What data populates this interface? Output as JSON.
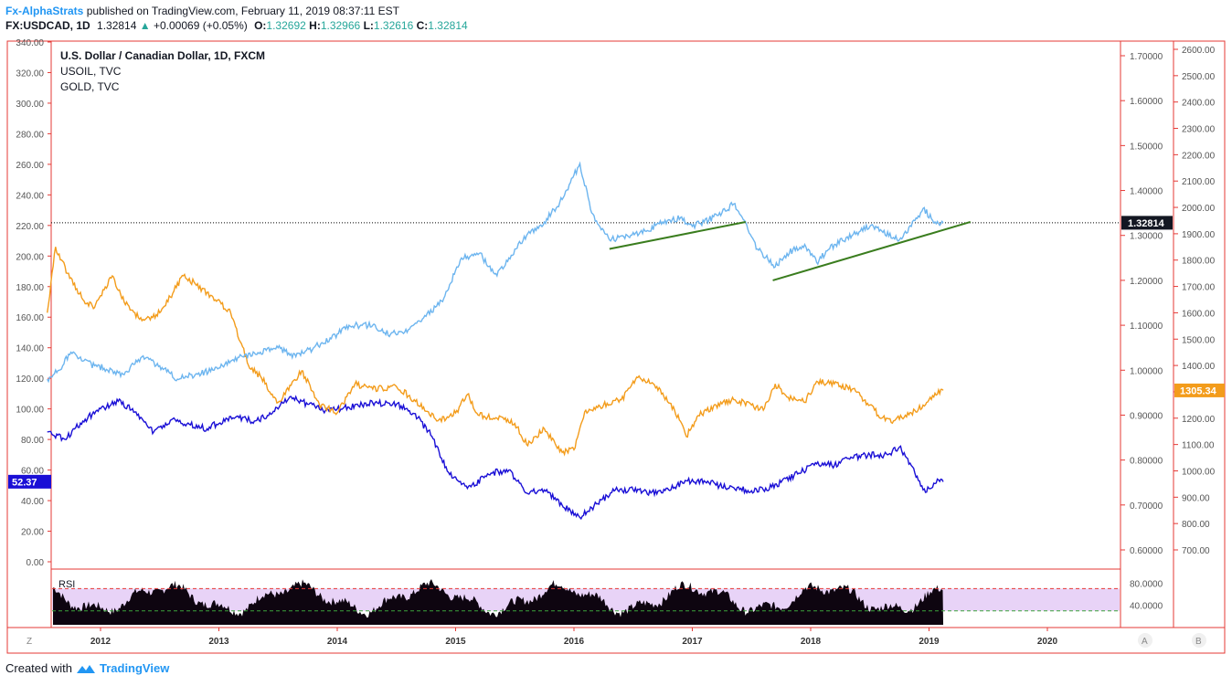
{
  "header": {
    "author": "Fx-AlphaStrats",
    "published": " published on TradingView.com, February 11, 2019 08:37:11 EST",
    "symbol": "FX:USDCAD, 1D",
    "last": "1.32814",
    "change_arrow": "▲",
    "change": "+0.00069 (+0.05%)",
    "open_label": "O:",
    "open": "1.32692",
    "high_label": "H:",
    "high": "1.32966",
    "low_label": "L:",
    "low": "1.32616",
    "close_label": "C:",
    "close": "1.32814"
  },
  "legend": {
    "line1": "U.S. Dollar / Canadian Dollar, 1D, FXCM",
    "line2": "USOIL, TVC",
    "line3": "GOLD, TVC"
  },
  "badges": {
    "usdcad": "1.32814",
    "gold": "1305.34",
    "oil": "52.37"
  },
  "indicator": {
    "label": "RSI"
  },
  "scale_buttons": {
    "left": "Z",
    "auto": "A",
    "right": "B"
  },
  "footer": {
    "created": "Created with",
    "brand": "TradingView"
  },
  "colors": {
    "usdcad": "#6db5ef",
    "usoil": "#1a0fd6",
    "gold": "#f39c1b",
    "trendline": "#3a7d1e",
    "axis_red": "#e53935",
    "rsi_fill": "#e8d3f7"
  },
  "chart_data": {
    "type": "line",
    "x_ticks": [
      "2012",
      "2013",
      "2014",
      "2015",
      "2016",
      "2017",
      "2018",
      "2019",
      "2020"
    ],
    "left_axis_ticks": [
      "0.00",
      "20.00",
      "40.00",
      "60.00",
      "80.00",
      "100.00",
      "120.00",
      "140.00",
      "160.00",
      "180.00",
      "200.00",
      "220.00",
      "240.00",
      "260.00",
      "280.00",
      "300.00",
      "320.00",
      "340.00"
    ],
    "mid_axis_ticks": [
      "0.60000",
      "0.70000",
      "0.80000",
      "0.90000",
      "1.00000",
      "1.10000",
      "1.20000",
      "1.30000",
      "1.40000",
      "1.50000",
      "1.60000",
      "1.70000"
    ],
    "right_axis_ticks": [
      "700.00",
      "800.00",
      "900.00",
      "1000.00",
      "1100.00",
      "1200.00",
      "1300.00",
      "1400.00",
      "1500.00",
      "1600.00",
      "1700.00",
      "1800.00",
      "1900.00",
      "2000.00",
      "2100.00",
      "2200.00",
      "2300.00",
      "2400.00",
      "2500.00",
      "2600.00"
    ],
    "rsi_ticks": [
      "40.0000",
      "80.0000"
    ],
    "left_ylim": [
      0,
      340
    ],
    "mid_ylim": [
      0.575,
      1.725
    ],
    "right_ylim": [
      620,
      2620
    ],
    "last_usdcad": 1.32814,
    "series": [
      {
        "name": "USOIL, TVC",
        "axis": "left",
        "points": [
          [
            2011.55,
            85
          ],
          [
            2011.7,
            80
          ],
          [
            2011.85,
            92
          ],
          [
            2012.0,
            100
          ],
          [
            2012.15,
            105
          ],
          [
            2012.3,
            98
          ],
          [
            2012.45,
            85
          ],
          [
            2012.6,
            93
          ],
          [
            2012.75,
            90
          ],
          [
            2012.9,
            87
          ],
          [
            2013.1,
            95
          ],
          [
            2013.3,
            92
          ],
          [
            2013.45,
            97
          ],
          [
            2013.6,
            108
          ],
          [
            2013.75,
            103
          ],
          [
            2013.9,
            99
          ],
          [
            2014.1,
            101
          ],
          [
            2014.3,
            104
          ],
          [
            2014.5,
            103
          ],
          [
            2014.65,
            97
          ],
          [
            2014.8,
            82
          ],
          [
            2014.95,
            57
          ],
          [
            2015.1,
            48
          ],
          [
            2015.3,
            58
          ],
          [
            2015.45,
            60
          ],
          [
            2015.6,
            45
          ],
          [
            2015.75,
            47
          ],
          [
            2015.9,
            37
          ],
          [
            2016.05,
            29
          ],
          [
            2016.2,
            38
          ],
          [
            2016.35,
            47
          ],
          [
            2016.5,
            47
          ],
          [
            2016.65,
            45
          ],
          [
            2016.8,
            47
          ],
          [
            2016.95,
            53
          ],
          [
            2017.1,
            53
          ],
          [
            2017.3,
            48
          ],
          [
            2017.45,
            47
          ],
          [
            2017.6,
            47
          ],
          [
            2017.75,
            52
          ],
          [
            2017.9,
            58
          ],
          [
            2018.05,
            64
          ],
          [
            2018.2,
            63
          ],
          [
            2018.35,
            68
          ],
          [
            2018.5,
            70
          ],
          [
            2018.65,
            70
          ],
          [
            2018.75,
            75
          ],
          [
            2018.85,
            63
          ],
          [
            2018.95,
            47
          ],
          [
            2019.0,
            48
          ],
          [
            2019.1,
            54
          ],
          [
            2019.12,
            52.37
          ]
        ]
      },
      {
        "name": "GOLD, TVC",
        "axis": "right",
        "points": [
          [
            2011.55,
            1600
          ],
          [
            2011.62,
            1850
          ],
          [
            2011.72,
            1750
          ],
          [
            2011.85,
            1650
          ],
          [
            2011.95,
            1620
          ],
          [
            2012.1,
            1740
          ],
          [
            2012.2,
            1640
          ],
          [
            2012.35,
            1570
          ],
          [
            2012.5,
            1600
          ],
          [
            2012.7,
            1740
          ],
          [
            2012.8,
            1710
          ],
          [
            2012.95,
            1660
          ],
          [
            2013.1,
            1600
          ],
          [
            2013.25,
            1400
          ],
          [
            2013.35,
            1360
          ],
          [
            2013.5,
            1260
          ],
          [
            2013.7,
            1380
          ],
          [
            2013.85,
            1250
          ],
          [
            2014.0,
            1220
          ],
          [
            2014.15,
            1330
          ],
          [
            2014.3,
            1310
          ],
          [
            2014.5,
            1320
          ],
          [
            2014.65,
            1270
          ],
          [
            2014.85,
            1190
          ],
          [
            2015.0,
            1220
          ],
          [
            2015.1,
            1290
          ],
          [
            2015.2,
            1210
          ],
          [
            2015.35,
            1200
          ],
          [
            2015.5,
            1180
          ],
          [
            2015.6,
            1100
          ],
          [
            2015.75,
            1160
          ],
          [
            2015.9,
            1070
          ],
          [
            2016.0,
            1080
          ],
          [
            2016.1,
            1230
          ],
          [
            2016.25,
            1250
          ],
          [
            2016.4,
            1270
          ],
          [
            2016.55,
            1360
          ],
          [
            2016.7,
            1320
          ],
          [
            2016.85,
            1230
          ],
          [
            2016.95,
            1130
          ],
          [
            2017.05,
            1210
          ],
          [
            2017.2,
            1250
          ],
          [
            2017.35,
            1270
          ],
          [
            2017.5,
            1250
          ],
          [
            2017.6,
            1230
          ],
          [
            2017.7,
            1330
          ],
          [
            2017.8,
            1280
          ],
          [
            2017.95,
            1260
          ],
          [
            2018.05,
            1340
          ],
          [
            2018.2,
            1330
          ],
          [
            2018.35,
            1310
          ],
          [
            2018.5,
            1250
          ],
          [
            2018.6,
            1200
          ],
          [
            2018.7,
            1190
          ],
          [
            2018.85,
            1220
          ],
          [
            2018.95,
            1250
          ],
          [
            2019.05,
            1295
          ],
          [
            2019.12,
            1305.34
          ]
        ]
      },
      {
        "name": "U.S. Dollar / Canadian Dollar, 1D, FXCM",
        "axis": "mid",
        "points": [
          [
            2011.55,
            0.98
          ],
          [
            2011.65,
            1.0
          ],
          [
            2011.75,
            1.04
          ],
          [
            2011.85,
            1.02
          ],
          [
            2011.95,
            1.01
          ],
          [
            2012.1,
            1.0
          ],
          [
            2012.2,
            0.99
          ],
          [
            2012.35,
            1.03
          ],
          [
            2012.5,
            1.01
          ],
          [
            2012.65,
            0.98
          ],
          [
            2012.8,
            0.99
          ],
          [
            2012.95,
            1.0
          ],
          [
            2013.1,
            1.02
          ],
          [
            2013.2,
            1.03
          ],
          [
            2013.35,
            1.04
          ],
          [
            2013.5,
            1.05
          ],
          [
            2013.65,
            1.03
          ],
          [
            2013.8,
            1.05
          ],
          [
            2013.95,
            1.07
          ],
          [
            2014.1,
            1.1
          ],
          [
            2014.3,
            1.1
          ],
          [
            2014.45,
            1.08
          ],
          [
            2014.6,
            1.09
          ],
          [
            2014.75,
            1.12
          ],
          [
            2014.9,
            1.16
          ],
          [
            2015.05,
            1.25
          ],
          [
            2015.2,
            1.26
          ],
          [
            2015.35,
            1.21
          ],
          [
            2015.45,
            1.25
          ],
          [
            2015.6,
            1.3
          ],
          [
            2015.75,
            1.33
          ],
          [
            2015.9,
            1.38
          ],
          [
            2016.05,
            1.46
          ],
          [
            2016.15,
            1.35
          ],
          [
            2016.3,
            1.29
          ],
          [
            2016.45,
            1.3
          ],
          [
            2016.6,
            1.31
          ],
          [
            2016.75,
            1.33
          ],
          [
            2016.9,
            1.34
          ],
          [
            2017.0,
            1.32
          ],
          [
            2017.1,
            1.33
          ],
          [
            2017.25,
            1.35
          ],
          [
            2017.35,
            1.37
          ],
          [
            2017.45,
            1.33
          ],
          [
            2017.55,
            1.27
          ],
          [
            2017.7,
            1.23
          ],
          [
            2017.8,
            1.26
          ],
          [
            2017.95,
            1.28
          ],
          [
            2018.05,
            1.24
          ],
          [
            2018.2,
            1.28
          ],
          [
            2018.35,
            1.3
          ],
          [
            2018.5,
            1.32
          ],
          [
            2018.6,
            1.31
          ],
          [
            2018.75,
            1.29
          ],
          [
            2018.85,
            1.32
          ],
          [
            2018.95,
            1.36
          ],
          [
            2019.05,
            1.33
          ],
          [
            2019.12,
            1.32814
          ]
        ]
      }
    ],
    "trendlines": [
      {
        "axis": "mid",
        "from": [
          2016.3,
          1.27
        ],
        "to": [
          2017.45,
          1.33
        ]
      },
      {
        "axis": "mid",
        "from": [
          2017.68,
          1.2
        ],
        "to": [
          2019.35,
          1.33
        ]
      }
    ],
    "rsi_bands": [
      30,
      70
    ]
  }
}
